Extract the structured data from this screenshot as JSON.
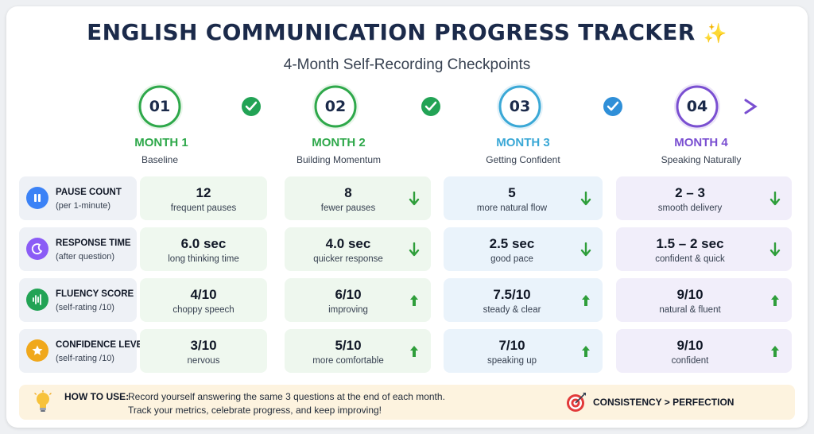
{
  "header": {
    "title": "ENGLISH COMMUNICATION PROGRESS TRACKER",
    "title_icon": "sparkles-icon",
    "subtitle": "4-Month Self-Recording Checkpoints"
  },
  "months": [
    {
      "number": "01",
      "label": "MONTH 1",
      "desc": "Baseline",
      "color": "#2ea84a"
    },
    {
      "number": "02",
      "label": "MONTH 2",
      "desc": "Building Momentum",
      "color": "#2ea84a"
    },
    {
      "number": "03",
      "label": "MONTH 3",
      "desc": "Getting Confident",
      "color": "#3aa8d6"
    },
    {
      "number": "04",
      "label": "MONTH 4",
      "desc": "Speaking Naturally",
      "color": "#7a4fd1"
    }
  ],
  "metrics": [
    {
      "title": "PAUSE COUNT",
      "sub": "(per 1-minute)",
      "icon": "pause-icon",
      "icon_color": "#3b82f6",
      "cells": [
        {
          "value": "12",
          "caption": "frequent pauses",
          "trend": "none"
        },
        {
          "value": "8",
          "caption": "fewer pauses",
          "trend": "down"
        },
        {
          "value": "5",
          "caption": "more natural flow",
          "trend": "down"
        },
        {
          "value": "2 – 3",
          "caption": "smooth delivery",
          "trend": "down"
        }
      ]
    },
    {
      "title": "RESPONSE TIME",
      "sub": "(after question)",
      "icon": "moon-clock-icon",
      "icon_color": "#8b5cf6",
      "cells": [
        {
          "value": "6.0 sec",
          "caption": "long thinking time",
          "trend": "none"
        },
        {
          "value": "4.0 sec",
          "caption": "quicker response",
          "trend": "down"
        },
        {
          "value": "2.5 sec",
          "caption": "good pace",
          "trend": "down"
        },
        {
          "value": "1.5 – 2 sec",
          "caption": "confident & quick",
          "trend": "down"
        }
      ]
    },
    {
      "title": "FLUENCY SCORE",
      "sub": "(self-rating /10)",
      "icon": "sound-wave-icon",
      "icon_color": "#22a355",
      "cells": [
        {
          "value": "4/10",
          "caption": "choppy speech",
          "trend": "none"
        },
        {
          "value": "6/10",
          "caption": "improving",
          "trend": "up"
        },
        {
          "value": "7.5/10",
          "caption": "steady & clear",
          "trend": "up"
        },
        {
          "value": "9/10",
          "caption": "natural & fluent",
          "trend": "up"
        }
      ]
    },
    {
      "title": "CONFIDENCE LEVEL",
      "sub": "(self-rating /10)",
      "icon": "star-icon",
      "icon_color": "#f0a81c",
      "cells": [
        {
          "value": "3/10",
          "caption": "nervous",
          "trend": "none"
        },
        {
          "value": "5/10",
          "caption": "more comfortable",
          "trend": "up"
        },
        {
          "value": "7/10",
          "caption": "speaking up",
          "trend": "up"
        },
        {
          "value": "9/10",
          "caption": "confident",
          "trend": "up"
        }
      ]
    }
  ],
  "footer": {
    "how_label": "HOW TO USE:",
    "line1": "Record yourself answering the same 3 questions at the end of each month.",
    "line2": "Track your metrics, celebrate progress, and keep improving!",
    "motto": "CONSISTENCY > PERFECTION",
    "bulb_icon": "lightbulb-icon",
    "target_icon": "target-icon"
  },
  "colors": {
    "trend_arrow": "#2e9e3a",
    "check_green": "#22a355",
    "check_blue": "#2f8fd8"
  }
}
